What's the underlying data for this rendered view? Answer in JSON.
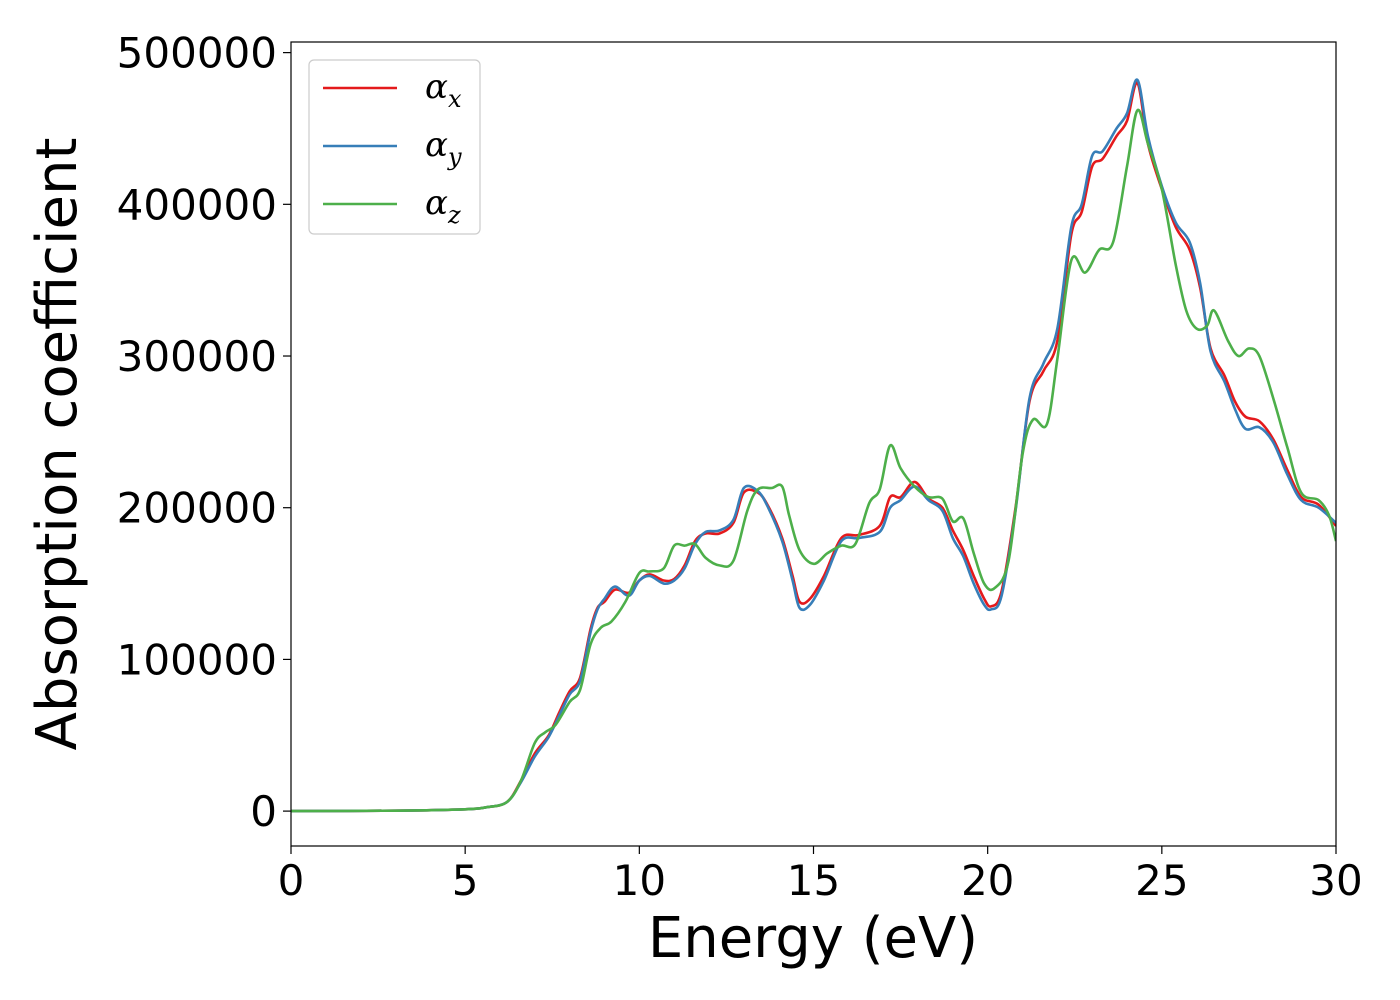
{
  "chart_data": {
    "type": "line",
    "xlabel": "Energy (eV)",
    "ylabel": "Absorption coefficient",
    "xlim": [
      0,
      30
    ],
    "ylim": [
      -23000,
      507000
    ],
    "xticks": [
      0,
      5,
      10,
      15,
      20,
      25,
      30
    ],
    "yticks": [
      0,
      100000,
      200000,
      300000,
      400000,
      500000
    ],
    "grid": false,
    "legend_position": "top-left",
    "series": [
      {
        "name": "α",
        "subscript": "x",
        "color": "#e41a1c",
        "points": [
          [
            0,
            0
          ],
          [
            3,
            300
          ],
          [
            5,
            1200
          ],
          [
            5.6,
            2500
          ],
          [
            6.2,
            6000
          ],
          [
            6.6,
            20000
          ],
          [
            7.0,
            38000
          ],
          [
            7.4,
            50000
          ],
          [
            7.7,
            65000
          ],
          [
            8.0,
            79000
          ],
          [
            8.3,
            88000
          ],
          [
            8.6,
            120000
          ],
          [
            8.8,
            134000
          ],
          [
            9.0,
            138000
          ],
          [
            9.3,
            146000
          ],
          [
            9.7,
            144000
          ],
          [
            10.0,
            152000
          ],
          [
            10.3,
            156000
          ],
          [
            10.7,
            152000
          ],
          [
            11.0,
            153000
          ],
          [
            11.3,
            162000
          ],
          [
            11.6,
            178000
          ],
          [
            11.9,
            183000
          ],
          [
            12.3,
            183000
          ],
          [
            12.7,
            190000
          ],
          [
            13.0,
            210000
          ],
          [
            13.4,
            210000
          ],
          [
            13.7,
            201000
          ],
          [
            14.1,
            180000
          ],
          [
            14.4,
            155000
          ],
          [
            14.6,
            138000
          ],
          [
            14.9,
            140000
          ],
          [
            15.3,
            155000
          ],
          [
            15.8,
            180000
          ],
          [
            16.3,
            182000
          ],
          [
            16.9,
            188000
          ],
          [
            17.2,
            207000
          ],
          [
            17.5,
            207000
          ],
          [
            17.9,
            217000
          ],
          [
            18.3,
            206000
          ],
          [
            18.7,
            200000
          ],
          [
            19.0,
            185000
          ],
          [
            19.3,
            172000
          ],
          [
            19.6,
            155000
          ],
          [
            19.9,
            140000
          ],
          [
            20.1,
            135000
          ],
          [
            20.4,
            145000
          ],
          [
            20.8,
            200000
          ],
          [
            21.2,
            270000
          ],
          [
            21.6,
            290000
          ],
          [
            22.0,
            310000
          ],
          [
            22.4,
            380000
          ],
          [
            22.7,
            395000
          ],
          [
            23.0,
            425000
          ],
          [
            23.3,
            430000
          ],
          [
            23.7,
            445000
          ],
          [
            24.0,
            455000
          ],
          [
            24.3,
            480000
          ],
          [
            24.6,
            440000
          ],
          [
            25.0,
            410000
          ],
          [
            25.4,
            385000
          ],
          [
            25.8,
            370000
          ],
          [
            26.1,
            345000
          ],
          [
            26.4,
            305000
          ],
          [
            26.8,
            287000
          ],
          [
            27.1,
            270000
          ],
          [
            27.4,
            260000
          ],
          [
            27.8,
            257000
          ],
          [
            28.2,
            245000
          ],
          [
            28.6,
            225000
          ],
          [
            29.0,
            207000
          ],
          [
            29.5,
            202000
          ],
          [
            30.0,
            188000
          ]
        ]
      },
      {
        "name": "α",
        "subscript": "y",
        "color": "#377eb8",
        "points": [
          [
            0,
            0
          ],
          [
            3,
            300
          ],
          [
            5,
            1200
          ],
          [
            5.6,
            2500
          ],
          [
            6.2,
            6000
          ],
          [
            6.6,
            19000
          ],
          [
            7.0,
            36000
          ],
          [
            7.4,
            49000
          ],
          [
            7.7,
            63000
          ],
          [
            8.0,
            77000
          ],
          [
            8.3,
            86000
          ],
          [
            8.6,
            118000
          ],
          [
            8.8,
            133000
          ],
          [
            9.0,
            140000
          ],
          [
            9.3,
            148000
          ],
          [
            9.7,
            142000
          ],
          [
            10.0,
            152000
          ],
          [
            10.3,
            155000
          ],
          [
            10.7,
            150000
          ],
          [
            11.0,
            152000
          ],
          [
            11.3,
            160000
          ],
          [
            11.6,
            176000
          ],
          [
            11.9,
            184000
          ],
          [
            12.3,
            185000
          ],
          [
            12.7,
            192000
          ],
          [
            13.0,
            213000
          ],
          [
            13.4,
            211000
          ],
          [
            13.7,
            200000
          ],
          [
            14.1,
            178000
          ],
          [
            14.4,
            152000
          ],
          [
            14.6,
            134000
          ],
          [
            14.9,
            136000
          ],
          [
            15.3,
            152000
          ],
          [
            15.8,
            178000
          ],
          [
            16.3,
            180000
          ],
          [
            16.9,
            184000
          ],
          [
            17.2,
            200000
          ],
          [
            17.5,
            205000
          ],
          [
            17.9,
            214000
          ],
          [
            18.3,
            205000
          ],
          [
            18.7,
            198000
          ],
          [
            19.0,
            180000
          ],
          [
            19.3,
            168000
          ],
          [
            19.6,
            150000
          ],
          [
            19.9,
            136000
          ],
          [
            20.1,
            133000
          ],
          [
            20.4,
            142000
          ],
          [
            20.8,
            198000
          ],
          [
            21.2,
            272000
          ],
          [
            21.6,
            295000
          ],
          [
            22.0,
            318000
          ],
          [
            22.4,
            385000
          ],
          [
            22.7,
            400000
          ],
          [
            23.0,
            432000
          ],
          [
            23.3,
            435000
          ],
          [
            23.7,
            450000
          ],
          [
            24.0,
            460000
          ],
          [
            24.3,
            482000
          ],
          [
            24.6,
            445000
          ],
          [
            25.0,
            412000
          ],
          [
            25.4,
            388000
          ],
          [
            25.8,
            375000
          ],
          [
            26.1,
            348000
          ],
          [
            26.4,
            303000
          ],
          [
            26.8,
            283000
          ],
          [
            27.1,
            265000
          ],
          [
            27.4,
            252000
          ],
          [
            27.8,
            253000
          ],
          [
            28.2,
            243000
          ],
          [
            28.6,
            222000
          ],
          [
            29.0,
            205000
          ],
          [
            29.5,
            200000
          ],
          [
            30.0,
            190000
          ]
        ]
      },
      {
        "name": "α",
        "subscript": "z",
        "color": "#4daf4a",
        "points": [
          [
            0,
            0
          ],
          [
            3,
            300
          ],
          [
            5,
            1200
          ],
          [
            5.6,
            2500
          ],
          [
            6.2,
            6000
          ],
          [
            6.6,
            20000
          ],
          [
            7.0,
            45000
          ],
          [
            7.3,
            52000
          ],
          [
            7.6,
            57000
          ],
          [
            8.0,
            72000
          ],
          [
            8.3,
            80000
          ],
          [
            8.6,
            110000
          ],
          [
            8.9,
            121000
          ],
          [
            9.2,
            125000
          ],
          [
            9.6,
            138000
          ],
          [
            10.0,
            157000
          ],
          [
            10.3,
            158000
          ],
          [
            10.7,
            160000
          ],
          [
            11.0,
            175000
          ],
          [
            11.3,
            175000
          ],
          [
            11.6,
            176000
          ],
          [
            11.9,
            167000
          ],
          [
            12.3,
            162000
          ],
          [
            12.7,
            165000
          ],
          [
            13.1,
            198000
          ],
          [
            13.4,
            212000
          ],
          [
            13.8,
            213000
          ],
          [
            14.1,
            214000
          ],
          [
            14.3,
            195000
          ],
          [
            14.6,
            172000
          ],
          [
            15.0,
            163000
          ],
          [
            15.4,
            170000
          ],
          [
            15.8,
            175000
          ],
          [
            16.2,
            176000
          ],
          [
            16.6,
            203000
          ],
          [
            16.9,
            212000
          ],
          [
            17.2,
            241000
          ],
          [
            17.5,
            226000
          ],
          [
            17.9,
            214000
          ],
          [
            18.3,
            207000
          ],
          [
            18.7,
            206000
          ],
          [
            19.0,
            191000
          ],
          [
            19.3,
            193000
          ],
          [
            19.6,
            170000
          ],
          [
            19.9,
            150000
          ],
          [
            20.2,
            147000
          ],
          [
            20.6,
            165000
          ],
          [
            21.0,
            235000
          ],
          [
            21.3,
            258000
          ],
          [
            21.7,
            255000
          ],
          [
            22.0,
            298000
          ],
          [
            22.4,
            363000
          ],
          [
            22.8,
            355000
          ],
          [
            23.2,
            370000
          ],
          [
            23.6,
            375000
          ],
          [
            24.0,
            425000
          ],
          [
            24.3,
            462000
          ],
          [
            24.6,
            440000
          ],
          [
            25.0,
            410000
          ],
          [
            25.4,
            360000
          ],
          [
            25.7,
            330000
          ],
          [
            26.0,
            318000
          ],
          [
            26.3,
            320000
          ],
          [
            26.5,
            330000
          ],
          [
            26.9,
            310000
          ],
          [
            27.2,
            300000
          ],
          [
            27.5,
            305000
          ],
          [
            27.8,
            300000
          ],
          [
            28.2,
            272000
          ],
          [
            28.6,
            240000
          ],
          [
            29.0,
            210000
          ],
          [
            29.5,
            205000
          ],
          [
            29.8,
            195000
          ],
          [
            30.0,
            178000
          ]
        ]
      }
    ]
  }
}
